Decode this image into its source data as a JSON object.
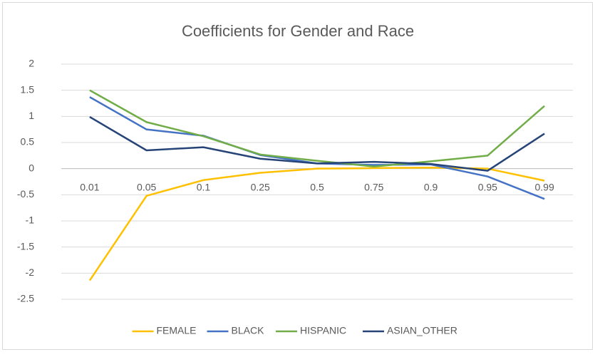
{
  "chart_data": {
    "type": "line",
    "title": "Coefficients for Gender and Race",
    "categories": [
      "0.01",
      "0.05",
      "0.1",
      "0.25",
      "0.5",
      "0.75",
      "0.9",
      "0.95",
      "0.99"
    ],
    "series": [
      {
        "name": "FEMALE",
        "color": "#ffc000",
        "values": [
          -2.14,
          -0.52,
          -0.22,
          -0.08,
          0,
          0.01,
          0.02,
          0,
          -0.23
        ]
      },
      {
        "name": "BLACK",
        "color": "#4472c4",
        "values": [
          1.37,
          0.75,
          0.63,
          0.26,
          0.1,
          0.07,
          0.08,
          -0.15,
          -0.58
        ]
      },
      {
        "name": "HISPANIC",
        "color": "#70ad47",
        "values": [
          1.5,
          0.89,
          0.62,
          0.27,
          0.15,
          0.04,
          0.14,
          0.25,
          1.2
        ]
      },
      {
        "name": "ASIAN_OTHER",
        "color": "#264478",
        "values": [
          0.99,
          0.35,
          0.41,
          0.19,
          0.1,
          0.13,
          0.09,
          -0.04,
          0.67
        ]
      }
    ],
    "ylim": [
      -2.5,
      2
    ],
    "yticks": [
      -2.5,
      -2,
      -1.5,
      -1,
      -0.5,
      0,
      0.5,
      1,
      1.5,
      2
    ],
    "grid": true,
    "legend": "bottom"
  }
}
